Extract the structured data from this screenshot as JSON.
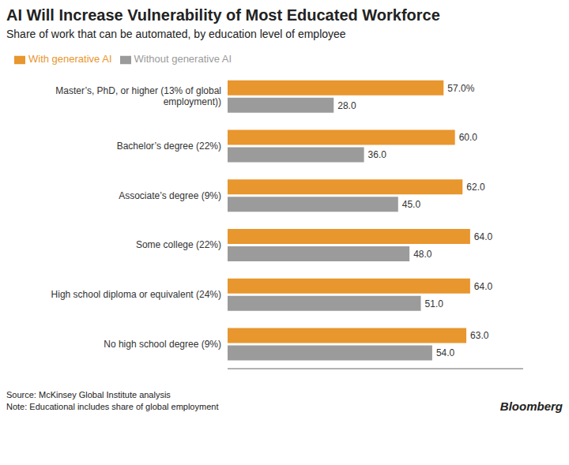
{
  "chart_data": {
    "type": "bar",
    "orientation": "horizontal",
    "title": "AI Will Increase Vulnerability of Most Educated Workforce",
    "subtitle": "Share of work that can be automated, by education level of employee",
    "categories": [
      "Master’s, PhD, or higher (13% of global\nemployment))",
      "Bachelor’s degree (22%)",
      "Associate’s degree (9%)",
      "Some college (22%)",
      "High school diploma or equivalent (24%)",
      "No high school degree (9%)"
    ],
    "series": [
      {
        "name": "With generative AI",
        "color": "#E8962E",
        "values": [
          57.0,
          60.0,
          62.0,
          64.0,
          64.0,
          63.0
        ],
        "value_labels": [
          "57.0%",
          "60.0",
          "62.0",
          "64.0",
          "64.0",
          "63.0"
        ]
      },
      {
        "name": "Without generative AI",
        "color": "#9B9B9B",
        "values": [
          28.0,
          36.0,
          45.0,
          48.0,
          51.0,
          54.0
        ],
        "value_labels": [
          "28.0",
          "36.0",
          "45.0",
          "48.0",
          "51.0",
          "54.0"
        ]
      }
    ],
    "xlim": [
      0,
      78
    ],
    "data_labels": true,
    "tick_labels": "y",
    "grid": false,
    "legend": "top",
    "annotations": [
      "Source: McKinsey Global Institute analysis\nNote: Educational includes share of global employment",
      "Bloomberg"
    ]
  }
}
